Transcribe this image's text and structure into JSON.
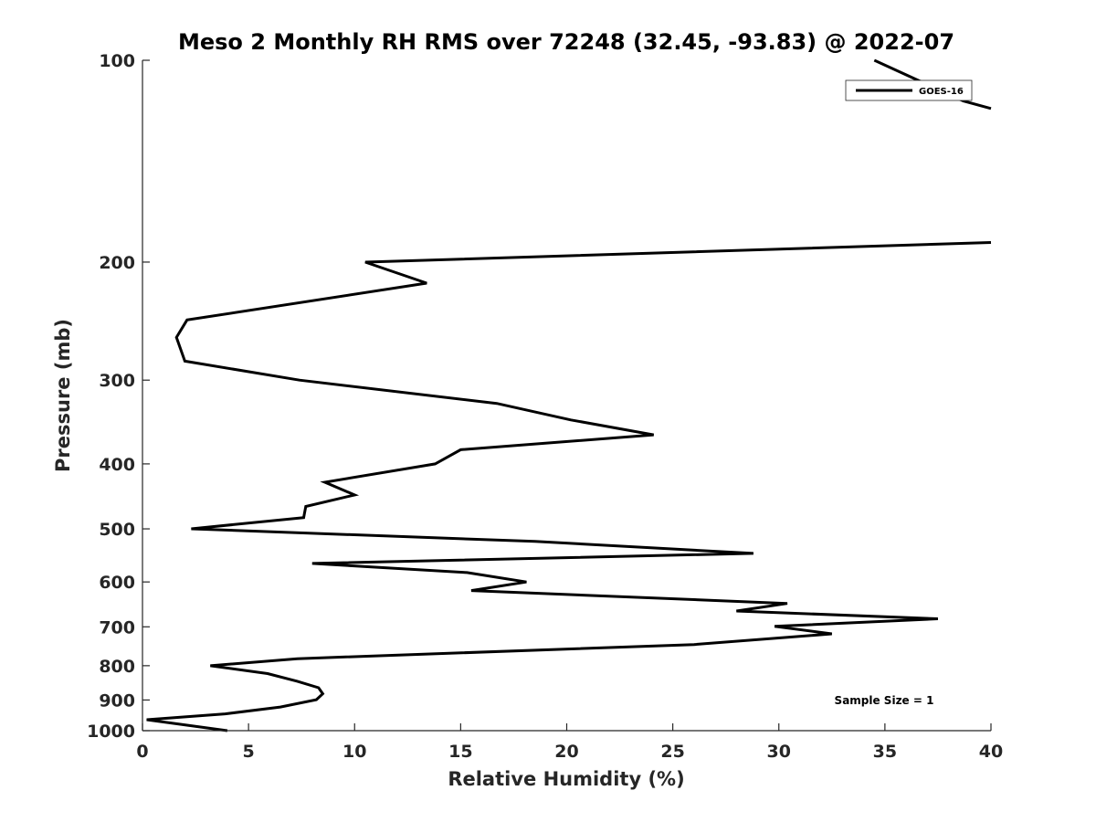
{
  "chart_data": {
    "type": "line",
    "title": "Meso 2 Monthly RH RMS over 72248 (32.45, -93.83) @ 2022-07",
    "xlabel": "Relative Humidity (%)",
    "ylabel": "Pressure (mb)",
    "xlim": [
      0,
      40
    ],
    "ylim": [
      100,
      1000
    ],
    "y_scale": "log",
    "y_reversed": true,
    "grid": false,
    "legend_position": "top-right",
    "x_ticks": [
      0,
      5,
      10,
      15,
      20,
      25,
      30,
      35,
      40
    ],
    "x_tick_labels": [
      "0",
      "5",
      "10",
      "15",
      "20",
      "25",
      "30",
      "35",
      "40"
    ],
    "y_ticks": [
      100,
      200,
      300,
      400,
      500,
      600,
      700,
      800,
      900,
      1000
    ],
    "y_tick_labels": [
      "100",
      "200",
      "300",
      "400",
      "500",
      "600",
      "700",
      "800",
      "900",
      "1000"
    ],
    "annotation": "Sample Size = 1",
    "series": [
      {
        "name": "GOES-16",
        "color": "#000000",
        "segments": [
          [
            {
              "x": 34.5,
              "y": 100
            },
            {
              "x": 38.7,
              "y": 115
            },
            {
              "x": 40,
              "y": 118
            }
          ],
          [
            {
              "x": 40,
              "y": 187
            },
            {
              "x": 10.5,
              "y": 200
            },
            {
              "x": 13.4,
              "y": 215
            },
            {
              "x": 2.1,
              "y": 244
            },
            {
              "x": 1.6,
              "y": 259
            },
            {
              "x": 2.0,
              "y": 281
            },
            {
              "x": 7.4,
              "y": 300
            },
            {
              "x": 16.7,
              "y": 325
            },
            {
              "x": 20.2,
              "y": 344
            },
            {
              "x": 24.1,
              "y": 362
            },
            {
              "x": 15.0,
              "y": 381
            },
            {
              "x": 13.8,
              "y": 400
            },
            {
              "x": 8.6,
              "y": 426
            },
            {
              "x": 10.0,
              "y": 445
            },
            {
              "x": 7.7,
              "y": 463
            },
            {
              "x": 7.6,
              "y": 481
            },
            {
              "x": 2.3,
              "y": 500
            },
            {
              "x": 18.5,
              "y": 522
            },
            {
              "x": 28.8,
              "y": 544
            },
            {
              "x": 8.0,
              "y": 563
            },
            {
              "x": 15.3,
              "y": 581
            },
            {
              "x": 18.1,
              "y": 600
            },
            {
              "x": 15.5,
              "y": 618
            },
            {
              "x": 30.4,
              "y": 646
            },
            {
              "x": 28.0,
              "y": 663
            },
            {
              "x": 37.5,
              "y": 681
            },
            {
              "x": 29.8,
              "y": 699
            },
            {
              "x": 32.5,
              "y": 717
            },
            {
              "x": 26.0,
              "y": 744
            },
            {
              "x": 7.3,
              "y": 781
            },
            {
              "x": 3.2,
              "y": 800
            },
            {
              "x": 5.9,
              "y": 822
            },
            {
              "x": 7.3,
              "y": 844
            },
            {
              "x": 8.3,
              "y": 863
            },
            {
              "x": 8.5,
              "y": 881
            },
            {
              "x": 8.2,
              "y": 899
            },
            {
              "x": 6.5,
              "y": 922
            },
            {
              "x": 3.9,
              "y": 944
            },
            {
              "x": 0.2,
              "y": 963
            },
            {
              "x": 4.0,
              "y": 1000
            }
          ]
        ]
      }
    ]
  }
}
